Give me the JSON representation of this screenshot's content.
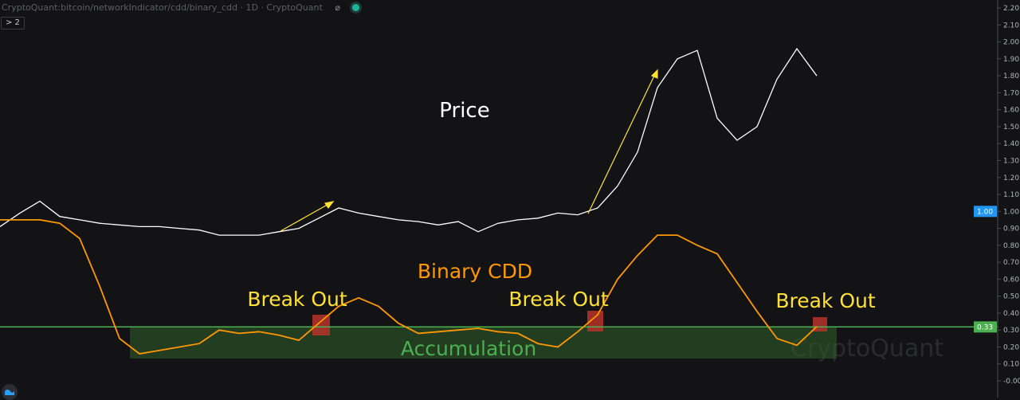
{
  "header": {
    "title": "CryptoQuant:bitcoin/networkIndicator/cdd/binary_cdd · 1D · CryptoQuant",
    "collapse_label": "> 2",
    "visibility_icon": "eye-off-icon",
    "status_icon": "status-dot-icon"
  },
  "watermark": "CryptoQuant",
  "chart_data": {
    "type": "line",
    "title": "",
    "xlabel": "",
    "ylabel": "",
    "ylim": [
      -0.1,
      2.2
    ],
    "y_ticks": [
      "2.20",
      "2.10",
      "2.00",
      "1.90",
      "1.80",
      "1.70",
      "1.60",
      "1.50",
      "1.40",
      "1.30",
      "1.20",
      "1.10",
      "1.00",
      "0.90",
      "0.80",
      "0.70",
      "0.60",
      "0.50",
      "0.40",
      "0.30",
      "0.20",
      "0.10",
      "-0.00"
    ],
    "y_tick_values": [
      2.2,
      2.1,
      2.0,
      1.9,
      1.8,
      1.7,
      1.6,
      1.5,
      1.4,
      1.3,
      1.2,
      1.1,
      1.0,
      0.9,
      0.8,
      0.7,
      0.6,
      0.5,
      0.4,
      0.3,
      0.2,
      0.1,
      0.0
    ],
    "grid": false,
    "price_label": {
      "text": "1.00",
      "value": 1.0,
      "color": "#2196f3"
    },
    "threshold": {
      "text": "0.33",
      "value": 0.33,
      "color": "#4caf50"
    },
    "series": [
      {
        "name": "Price",
        "color": "#ffffff",
        "values": [
          0.91,
          0.99,
          1.06,
          0.97,
          0.95,
          0.93,
          0.92,
          0.91,
          0.91,
          0.9,
          0.89,
          0.86,
          0.86,
          0.86,
          0.88,
          0.9,
          0.96,
          1.02,
          0.99,
          0.97,
          0.95,
          0.94,
          0.92,
          0.94,
          0.88,
          0.93,
          0.95,
          0.96,
          0.99,
          0.98,
          1.02,
          1.15,
          1.35,
          1.73,
          1.9,
          1.95,
          1.55,
          1.42,
          1.5,
          1.78,
          1.96,
          1.8
        ]
      },
      {
        "name": "Binary CDD",
        "color": "#ff9800",
        "values": [
          0.95,
          0.95,
          0.95,
          0.93,
          0.84,
          0.56,
          0.25,
          0.16,
          0.18,
          0.2,
          0.22,
          0.3,
          0.28,
          0.29,
          0.27,
          0.24,
          0.34,
          0.44,
          0.49,
          0.44,
          0.34,
          0.28,
          0.29,
          0.3,
          0.31,
          0.29,
          0.28,
          0.22,
          0.2,
          0.29,
          0.39,
          0.6,
          0.74,
          0.86,
          0.86,
          0.8,
          0.75,
          0.58,
          0.41,
          0.25,
          0.21,
          0.32
        ]
      }
    ],
    "annotations": {
      "price_text": "Price",
      "cdd_text": "Binary CDD",
      "breakout_labels": [
        "Break Out",
        "Break Out",
        "Break Out"
      ],
      "zone_text": "Accumulation",
      "colors": {
        "breakout": "#ffe135",
        "zone_fill": "#2e5a2a",
        "marker": "#b7322c",
        "arrow": "#ffe135",
        "zone_text": "#4caf50"
      }
    }
  }
}
